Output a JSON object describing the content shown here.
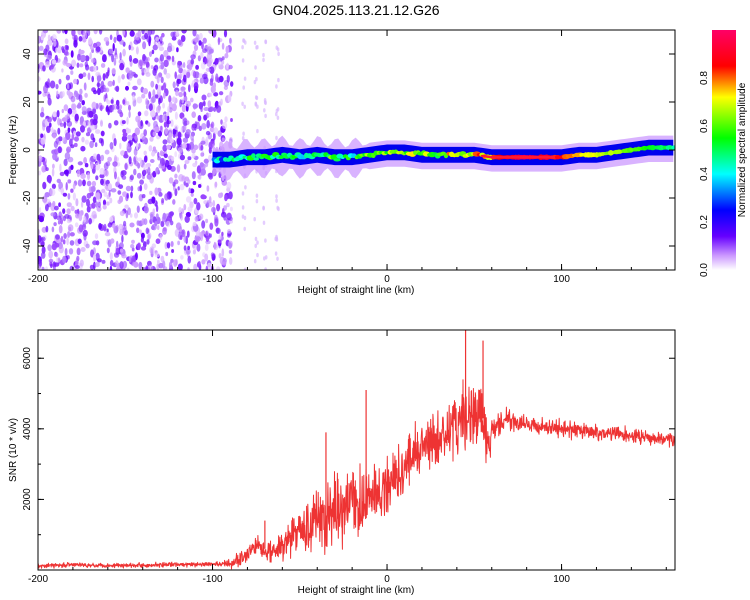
{
  "title": "GN04.2025.113.21.12.G26",
  "chart_data": [
    {
      "type": "heatmap",
      "xlabel": "Height of straight line (km)",
      "ylabel": "Frequency (Hz)",
      "xlim": [
        -200,
        165
      ],
      "ylim": [
        -50,
        50
      ],
      "xticks": [
        -200,
        -100,
        0,
        100
      ],
      "yticks": [
        40,
        20,
        0,
        -20,
        -40
      ],
      "colorbar": {
        "label": "Normalized spectral amplitude",
        "range": [
          0,
          1
        ],
        "ticks": [
          "0.0",
          "0.2",
          "0.4",
          "0.6",
          "0.8"
        ],
        "colors": [
          "#ffffff",
          "#cc99ff",
          "#6600ff",
          "#0000ff",
          "#00ffff",
          "#00ff00",
          "#ffff00",
          "#ff0000",
          "#ff0066"
        ]
      },
      "noise_region_x": [
        -200,
        -95
      ],
      "ridge": {
        "x": [
          -100,
          -90,
          -80,
          -70,
          -60,
          -50,
          -40,
          -30,
          -20,
          -10,
          0,
          10,
          20,
          30,
          40,
          50,
          60,
          70,
          80,
          90,
          100,
          110,
          120,
          130,
          140,
          150,
          160,
          165
        ],
        "y": [
          -4,
          -4,
          -3,
          -3,
          -2,
          -3,
          -2,
          -3,
          -3,
          -2,
          -1,
          -1,
          -2,
          -2,
          -2,
          -2,
          -3,
          -3,
          -3,
          -3,
          -3,
          -2,
          -2,
          -1,
          0,
          1,
          1,
          1
        ],
        "amplitude": [
          0.3,
          0.45,
          0.5,
          0.5,
          0.55,
          0.45,
          0.5,
          0.5,
          0.5,
          0.55,
          0.6,
          0.6,
          0.6,
          0.6,
          0.7,
          0.75,
          0.8,
          0.9,
          0.95,
          0.9,
          0.85,
          0.75,
          0.7,
          0.65,
          0.6,
          0.55,
          0.5,
          0.45
        ]
      }
    },
    {
      "type": "line",
      "xlabel": "Height of straight line (km)",
      "ylabel": "SNR (10 * v/v)",
      "xlim": [
        -200,
        165
      ],
      "ylim": [
        0,
        6800
      ],
      "xticks": [
        -200,
        -100,
        0,
        100
      ],
      "yticks": [
        2000,
        4000,
        6000
      ],
      "color": "#ee3333",
      "series": [
        {
          "x": [
            -200,
            -180,
            -160,
            -140,
            -120,
            -100,
            -90,
            -85,
            -80,
            -75,
            -70,
            -65,
            -60,
            -55,
            -50,
            -45,
            -40,
            -35,
            -30,
            -25,
            -20,
            -15,
            -10,
            -5,
            0,
            5,
            10,
            15,
            20,
            25,
            30,
            35,
            40,
            45,
            50,
            55,
            58,
            60,
            65,
            70,
            80,
            90,
            100,
            110,
            120,
            130,
            140,
            150,
            160,
            165
          ],
          "y": [
            120,
            150,
            130,
            140,
            150,
            160,
            180,
            300,
            500,
            700,
            600,
            500,
            700,
            900,
            1200,
            1100,
            1500,
            1400,
            1800,
            1500,
            2200,
            1800,
            2000,
            2100,
            2400,
            2700,
            2900,
            3300,
            3500,
            3600,
            3700,
            3900,
            4100,
            4300,
            4400,
            4300,
            3400,
            3800,
            4200,
            4300,
            4100,
            4050,
            4000,
            3950,
            3900,
            3850,
            3800,
            3750,
            3700,
            3650
          ],
          "noise_amplitude": [
            60,
            60,
            60,
            60,
            60,
            60,
            100,
            200,
            250,
            250,
            250,
            300,
            400,
            500,
            600,
            700,
            800,
            800,
            900,
            900,
            900,
            900,
            800,
            800,
            700,
            700,
            700,
            700,
            700,
            700,
            700,
            700,
            800,
            900,
            1000,
            900,
            700,
            500,
            300,
            250,
            200,
            200,
            200,
            200,
            200,
            200,
            180,
            180,
            180,
            180
          ],
          "spikes": [
            {
              "x": -70,
              "y": 1400
            },
            {
              "x": -35,
              "y": 3900
            },
            {
              "x": -12,
              "y": 5100
            },
            {
              "x": 45,
              "y": 6800
            },
            {
              "x": 55,
              "y": 6500
            }
          ]
        }
      ]
    }
  ]
}
